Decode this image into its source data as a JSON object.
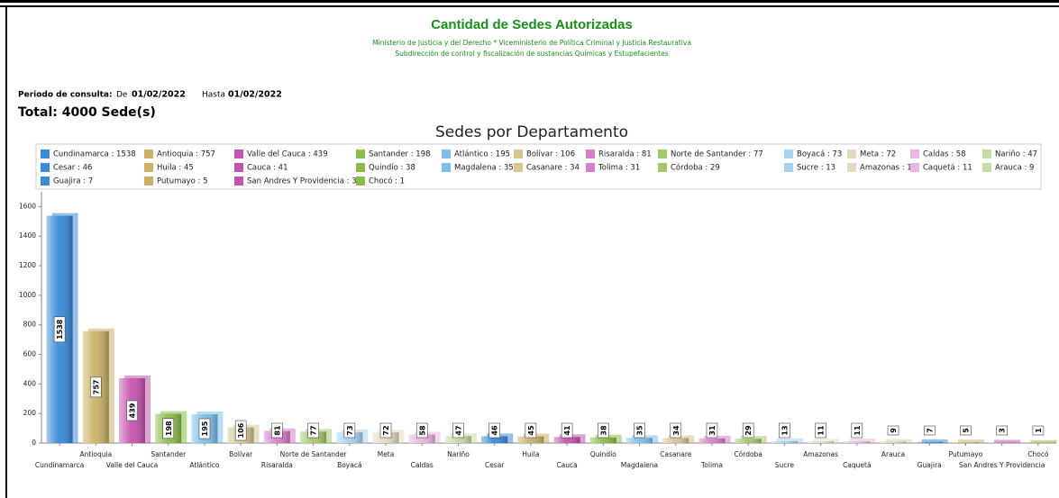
{
  "header": {
    "title": "Cantidad de Sedes Autorizadas",
    "subtitle_lines": [
      "Ministerio de Justicia y del Derecho * Viceministerio de Política Criminal y Justicia Restaurativa",
      "Subdirección de control y fiscalización de sustancias Químicas y Estupefacientes"
    ],
    "period_label": "Periodo de consulta:",
    "from_label": "De",
    "from_date": "01/02/2022",
    "to_label": "Hasta",
    "to_date": "01/02/2022",
    "total": "Total: 4000 Sede(s)"
  },
  "chart_data": {
    "type": "bar",
    "title": "Sedes por Departamento",
    "categories": [
      "Cundinamarca",
      "Antioquia",
      "Valle del Cauca",
      "Santander",
      "Atlántico",
      "Bolívar",
      "Risaralda",
      "Norte de Santander",
      "Boyacá",
      "Meta",
      "Caldas",
      "Nariño",
      "Cesar",
      "Huila",
      "Cauca",
      "Quindío",
      "Magdalena",
      "Casanare",
      "Tolima",
      "Córdoba",
      "Sucre",
      "Amazonas",
      "Caquetá",
      "Arauca",
      "Guajira",
      "Putumayo",
      "San Andres Y Providencia",
      "Chocó"
    ],
    "values": [
      1538,
      757,
      439,
      198,
      195,
      106,
      81,
      77,
      73,
      72,
      58,
      47,
      46,
      45,
      41,
      38,
      35,
      34,
      31,
      29,
      13,
      11,
      11,
      9,
      7,
      5,
      3,
      1
    ],
    "legend_labels": [
      "Cundinamarca : 1538",
      "Antioquia : 757",
      "Valle del Cauca : 439",
      "Santander : 198",
      "Atlántico : 195",
      "Bolívar : 106",
      "Risaralda : 81",
      "Norte de Santander : 77",
      "Boyacá : 73",
      "Meta : 72",
      "Caldas : 58",
      "Nariño : 47",
      "Cesar : 46",
      "Huila : 45",
      "Cauca : 41",
      "Quindío : 38",
      "Magdalena : 35",
      "Casanare : 34",
      "Tolima : 31",
      "Córdoba : 29",
      "Sucre : 13",
      "Amazonas : 11",
      "Caquetá : 11",
      "Arauca : 9",
      "Guajira : 7",
      "Putumayo : 5",
      "San Andres Y Providencia : 3",
      "Chocó : 1"
    ],
    "colors": [
      "#3a8ad6",
      "#c8b266",
      "#c455ae",
      "#8bbd48",
      "#7dbfe9",
      "#d6c493",
      "#d67ec7",
      "#a6c76e",
      "#a8d2ef",
      "#e4dabf",
      "#e8b6df",
      "#c7dba6",
      "#3a8ad6",
      "#c8b266",
      "#c455ae",
      "#8bbd48",
      "#7dbfe9",
      "#d6c493",
      "#d67ec7",
      "#a6c76e",
      "#a8d2ef",
      "#e4dabf",
      "#e8b6df",
      "#c7dba6",
      "#3a8ad6",
      "#c8b266",
      "#c455ae",
      "#8bbd48"
    ],
    "ylim": [
      0,
      1700
    ],
    "yticks": [
      0,
      200,
      400,
      600,
      800,
      1000,
      1200,
      1400,
      1600
    ],
    "grid": false
  }
}
